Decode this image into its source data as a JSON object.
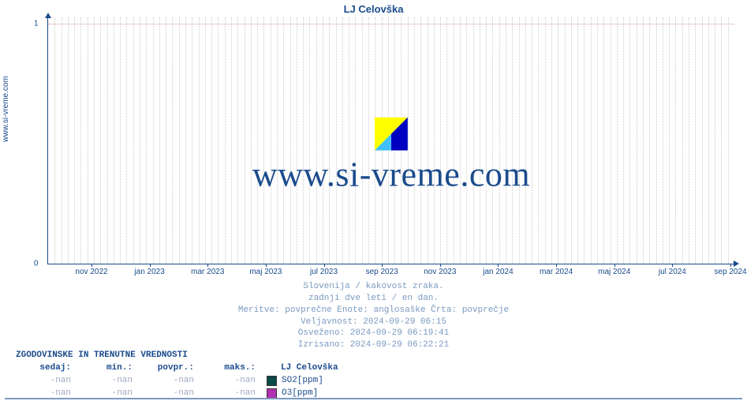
{
  "site_label": "www.si-vreme.com",
  "chart": {
    "title": "LJ Celovška",
    "type": "line",
    "ylim": [
      0,
      1
    ],
    "yticks": [
      0,
      1
    ],
    "hgrid_color": "#d49a9a",
    "vgrid_color": "#cccccc",
    "axis_color": "#1a4b8c",
    "background_color": "#ffffff",
    "title_fontsize": 13,
    "tick_fontsize": 10,
    "xticks": [
      "nov 2022",
      "jan 2023",
      "mar 2023",
      "maj 2023",
      "jul 2023",
      "sep 2023",
      "nov 2023",
      "jan 2024",
      "mar 2024",
      "maj 2024",
      "jul 2024",
      "sep 2024"
    ],
    "vgrid_count": 104,
    "watermark_text": "www.si-vreme.com",
    "watermark_color": "#1a4b8c",
    "watermark_fontsize": 44,
    "logo_colors": {
      "yellow": "#ffff00",
      "blue": "#0000c0",
      "cyan": "#40c0ff"
    }
  },
  "caption": {
    "line1": "Slovenija / kakovost zraka.",
    "line2": "zadnji dve leti / en dan.",
    "line3": "Meritve: povprečne  Enote: anglosaške  Črta: povprečje",
    "line4": "Veljavnost: 2024-09-29 06:15",
    "line5": "Osveženo: 2024-09-29 06:19:41",
    "line6": "Izrisano: 2024-09-29 06:22:21",
    "color": "#7a9ac0"
  },
  "stats": {
    "title": "ZGODOVINSKE IN TRENUTNE VREDNOSTI",
    "columns": [
      "sedaj:",
      "min.:",
      "povpr.:",
      "maks.:"
    ],
    "location_label": "LJ Celovška",
    "header_color": "#1a4b8c",
    "value_color": "#a0a8c0",
    "rows": [
      {
        "values": [
          "-nan",
          "-nan",
          "-nan",
          "-nan"
        ],
        "swatch": "#0a4a4a",
        "series": "SO2[ppm]"
      },
      {
        "values": [
          "-nan",
          "-nan",
          "-nan",
          "-nan"
        ],
        "swatch": "#b030b0",
        "series": "O3[ppm]"
      }
    ]
  }
}
